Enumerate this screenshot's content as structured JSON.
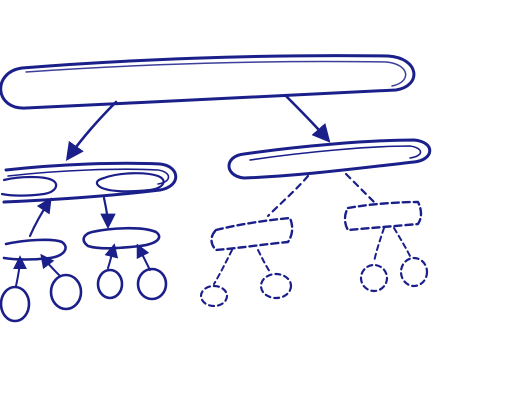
{
  "diagram": {
    "kind": "hand-drawn hierarchy sketch",
    "ink_color": "#1b1f8a",
    "nodes": [
      {
        "id": "root",
        "shape": "capsule",
        "style": "solid"
      },
      {
        "id": "left-mid",
        "shape": "capsule",
        "style": "solid",
        "parent": "root"
      },
      {
        "id": "left-mid-inner-a",
        "shape": "capsule",
        "style": "solid",
        "parent": "left-mid"
      },
      {
        "id": "left-mid-inner-b",
        "shape": "capsule",
        "style": "solid",
        "parent": "left-mid"
      },
      {
        "id": "left-child-a",
        "shape": "capsule",
        "style": "solid",
        "parent": "left-mid-inner-a"
      },
      {
        "id": "left-child-b",
        "shape": "capsule",
        "style": "solid",
        "parent": "left-mid-inner-b"
      },
      {
        "id": "left-leaf-1",
        "shape": "circle",
        "style": "solid",
        "parent": "left-child-a"
      },
      {
        "id": "left-leaf-2",
        "shape": "circle",
        "style": "solid",
        "parent": "left-child-a"
      },
      {
        "id": "left-leaf-3",
        "shape": "circle",
        "style": "solid",
        "parent": "left-child-b"
      },
      {
        "id": "left-leaf-4",
        "shape": "circle",
        "style": "solid",
        "parent": "left-child-b"
      },
      {
        "id": "right-mid",
        "shape": "capsule",
        "style": "solid",
        "parent": "root"
      },
      {
        "id": "right-child-a",
        "shape": "rectangle",
        "style": "dashed",
        "parent": "right-mid"
      },
      {
        "id": "right-child-b",
        "shape": "rectangle",
        "style": "dashed",
        "parent": "right-mid"
      },
      {
        "id": "right-leaf-1",
        "shape": "circle",
        "style": "dashed",
        "parent": "right-child-a"
      },
      {
        "id": "right-leaf-2",
        "shape": "circle",
        "style": "dashed",
        "parent": "right-child-a"
      },
      {
        "id": "right-leaf-3",
        "shape": "circle",
        "style": "dashed",
        "parent": "right-child-b"
      },
      {
        "id": "right-leaf-4",
        "shape": "circle",
        "style": "dashed",
        "parent": "right-child-b"
      }
    ]
  }
}
